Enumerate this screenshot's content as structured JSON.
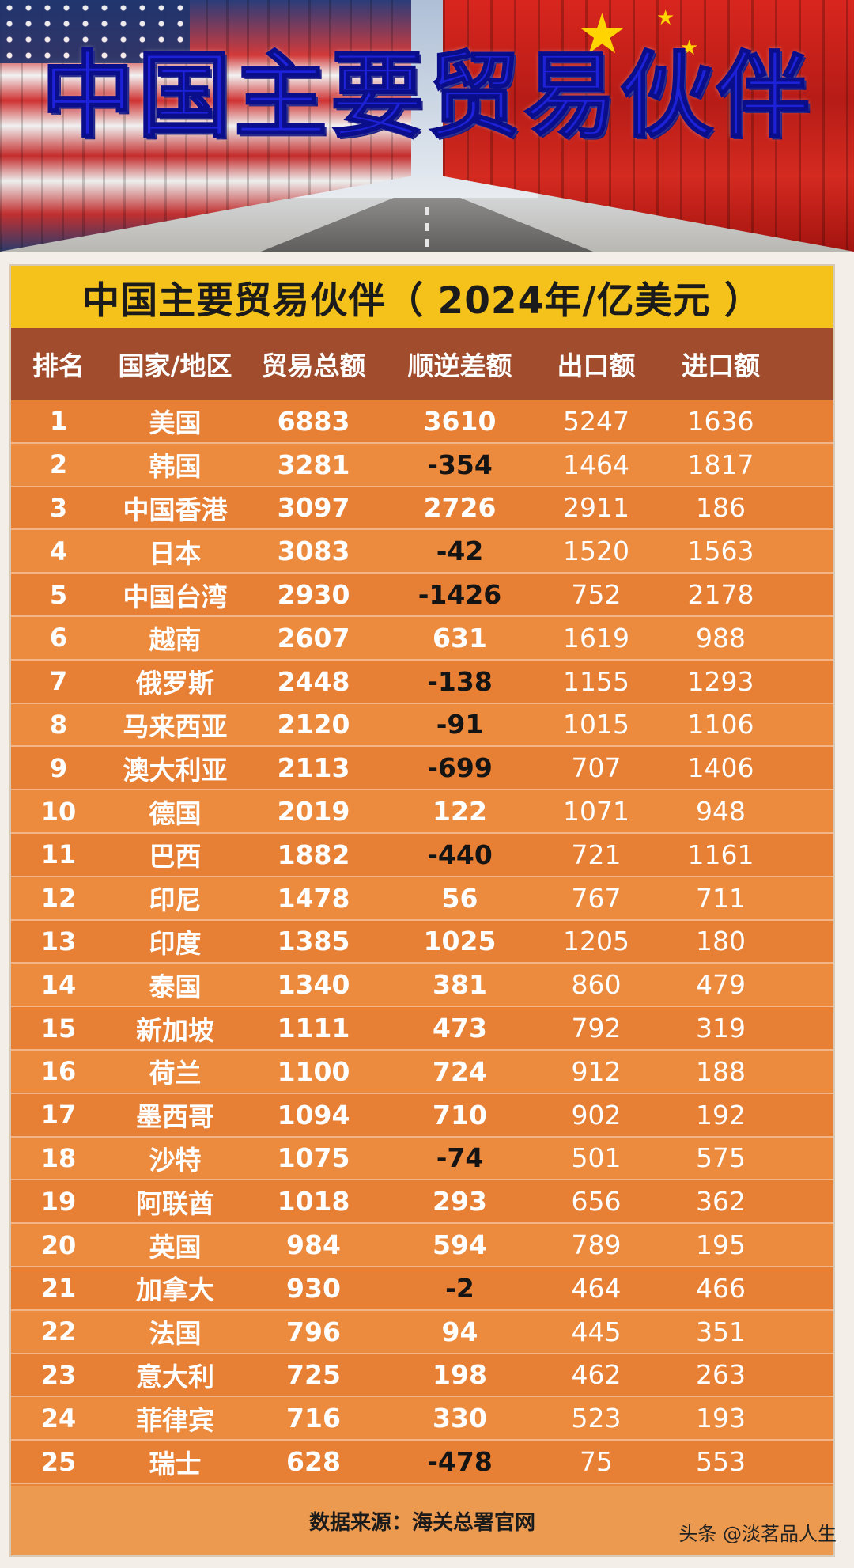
{
  "banner": {
    "title": "中国主要贸易伙伴"
  },
  "table": {
    "title": "中国主要贸易伙伴（ 2024年/亿美元 ）",
    "headers": [
      "排名",
      "国家/地区",
      "贸易总额",
      "顺逆差额",
      "出口额",
      "进口额"
    ],
    "rows": [
      [
        "1",
        "美国",
        "6883",
        "3610",
        "5247",
        "1636"
      ],
      [
        "2",
        "韩国",
        "3281",
        "-354",
        "1464",
        "1817"
      ],
      [
        "3",
        "中国香港",
        "3097",
        "2726",
        "2911",
        "186"
      ],
      [
        "4",
        "日本",
        "3083",
        "-42",
        "1520",
        "1563"
      ],
      [
        "5",
        "中国台湾",
        "2930",
        "-1426",
        "752",
        "2178"
      ],
      [
        "6",
        "越南",
        "2607",
        "631",
        "1619",
        "988"
      ],
      [
        "7",
        "俄罗斯",
        "2448",
        "-138",
        "1155",
        "1293"
      ],
      [
        "8",
        "马来西亚",
        "2120",
        "-91",
        "1015",
        "1106"
      ],
      [
        "9",
        "澳大利亚",
        "2113",
        "-699",
        "707",
        "1406"
      ],
      [
        "10",
        "德国",
        "2019",
        "122",
        "1071",
        "948"
      ],
      [
        "11",
        "巴西",
        "1882",
        "-440",
        "721",
        "1161"
      ],
      [
        "12",
        "印尼",
        "1478",
        "56",
        "767",
        "711"
      ],
      [
        "13",
        "印度",
        "1385",
        "1025",
        "1205",
        "180"
      ],
      [
        "14",
        "泰国",
        "1340",
        "381",
        "860",
        "479"
      ],
      [
        "15",
        "新加坡",
        "1111",
        "473",
        "792",
        "319"
      ],
      [
        "16",
        "荷兰",
        "1100",
        "724",
        "912",
        "188"
      ],
      [
        "17",
        "墨西哥",
        "1094",
        "710",
        "902",
        "192"
      ],
      [
        "18",
        "沙特",
        "1075",
        "-74",
        "501",
        "575"
      ],
      [
        "19",
        "阿联酋",
        "1018",
        "293",
        "656",
        "362"
      ],
      [
        "20",
        "英国",
        "984",
        "594",
        "789",
        "195"
      ],
      [
        "21",
        "加拿大",
        "930",
        "-2",
        "464",
        "466"
      ],
      [
        "22",
        "法国",
        "796",
        "94",
        "445",
        "351"
      ],
      [
        "23",
        "意大利",
        "725",
        "198",
        "462",
        "263"
      ],
      [
        "24",
        "菲律宾",
        "716",
        "330",
        "523",
        "193"
      ],
      [
        "25",
        "瑞士",
        "628",
        "-478",
        "75",
        "553"
      ]
    ],
    "source": "数据来源：海关总署官网"
  },
  "watermark": "头条 @淡茗品人生",
  "colors": {
    "title_bar": "#f4c21a",
    "header_bar": "#a14c2c",
    "row_bg": "#e77f34",
    "negative_text": "#141414",
    "banner_title": "#1d22d8"
  }
}
